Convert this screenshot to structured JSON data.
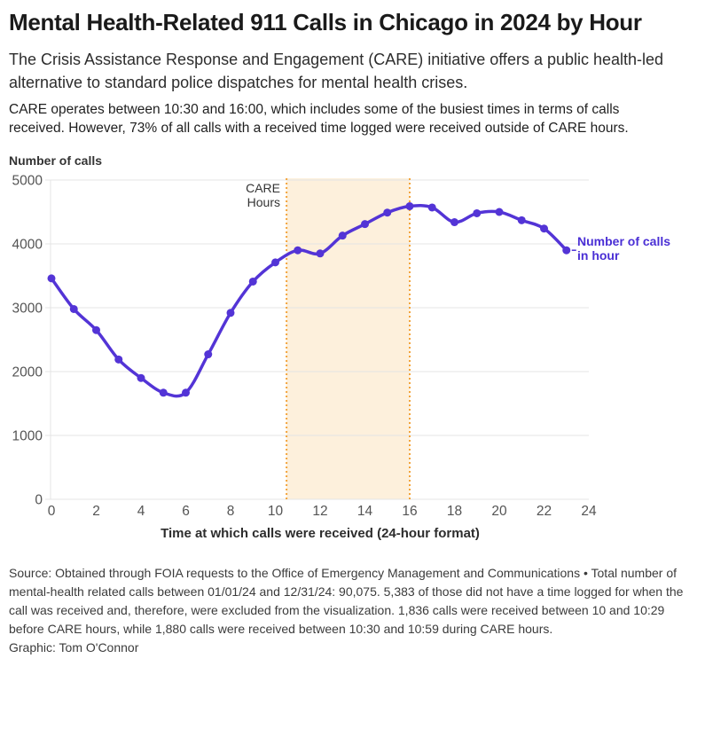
{
  "header": {
    "title": "Mental Health-Related 911 Calls in Chicago in 2024 by Hour",
    "subtitle": "The Crisis Assistance Response and Engagement (CARE) initiative offers a public health-led alternative to standard police dispatches for mental health crises.",
    "description": "CARE operates between 10:30 and 16:00, which includes some of the busiest times in terms of calls received. However, 73% of all calls with a received time logged were received outside of CARE hours."
  },
  "chart_data": {
    "type": "line",
    "title": "Mental Health-Related 911 Calls in Chicago in 2024 by Hour",
    "xlabel": "Time at which calls were received (24-hour format)",
    "ylabel": "Number of calls",
    "xlim": [
      0,
      24
    ],
    "ylim": [
      0,
      5000
    ],
    "x_ticks": [
      0,
      2,
      4,
      6,
      8,
      10,
      12,
      14,
      16,
      18,
      20,
      22,
      24
    ],
    "y_ticks": [
      0,
      1000,
      2000,
      3000,
      4000,
      5000
    ],
    "grid": true,
    "legend_position": "end-of-line-label",
    "x": [
      0,
      1,
      2,
      3,
      4,
      5,
      6,
      7,
      8,
      9,
      10,
      11,
      12,
      13,
      14,
      15,
      16,
      17,
      18,
      19,
      20,
      21,
      22,
      23
    ],
    "series": [
      {
        "name": "Number of calls in hour",
        "values": [
          3460,
          2980,
          2650,
          2190,
          1900,
          1670,
          1670,
          2270,
          2920,
          3410,
          3710,
          3900,
          3850,
          4130,
          4310,
          4490,
          4590,
          4570,
          4340,
          4480,
          4500,
          4370,
          4240,
          3900
        ]
      }
    ],
    "series_label_lines": [
      "Number of calls",
      "in hour"
    ],
    "band": {
      "x_start": 10.5,
      "x_end": 16,
      "label": "CARE Hours",
      "label_lines": [
        "CARE",
        "Hours"
      ],
      "fill": "#fdf0dc",
      "border_color": "#f2a43c"
    },
    "line_color": "#5334d6",
    "point_color": "#5334d6",
    "series_label_color": "#4a2fd5",
    "grid_color": "#e4e4e4",
    "tick_label_color": "#545454"
  },
  "footer": {
    "source": "Source: Obtained through FOIA requests to the Office of Emergency Management and Communications • Total number of mental-health related calls between 01/01/24 and 12/31/24: 90,075. 5,383 of those did not have a time logged for when the call was received and, therefore, were excluded from the visualization. 1,836 calls were received between 10 and 10:29 before CARE hours, while 1,880 calls were received between 10:30 and 10:59 during CARE hours.",
    "graphic": "Graphic: Tom O'Connor"
  }
}
